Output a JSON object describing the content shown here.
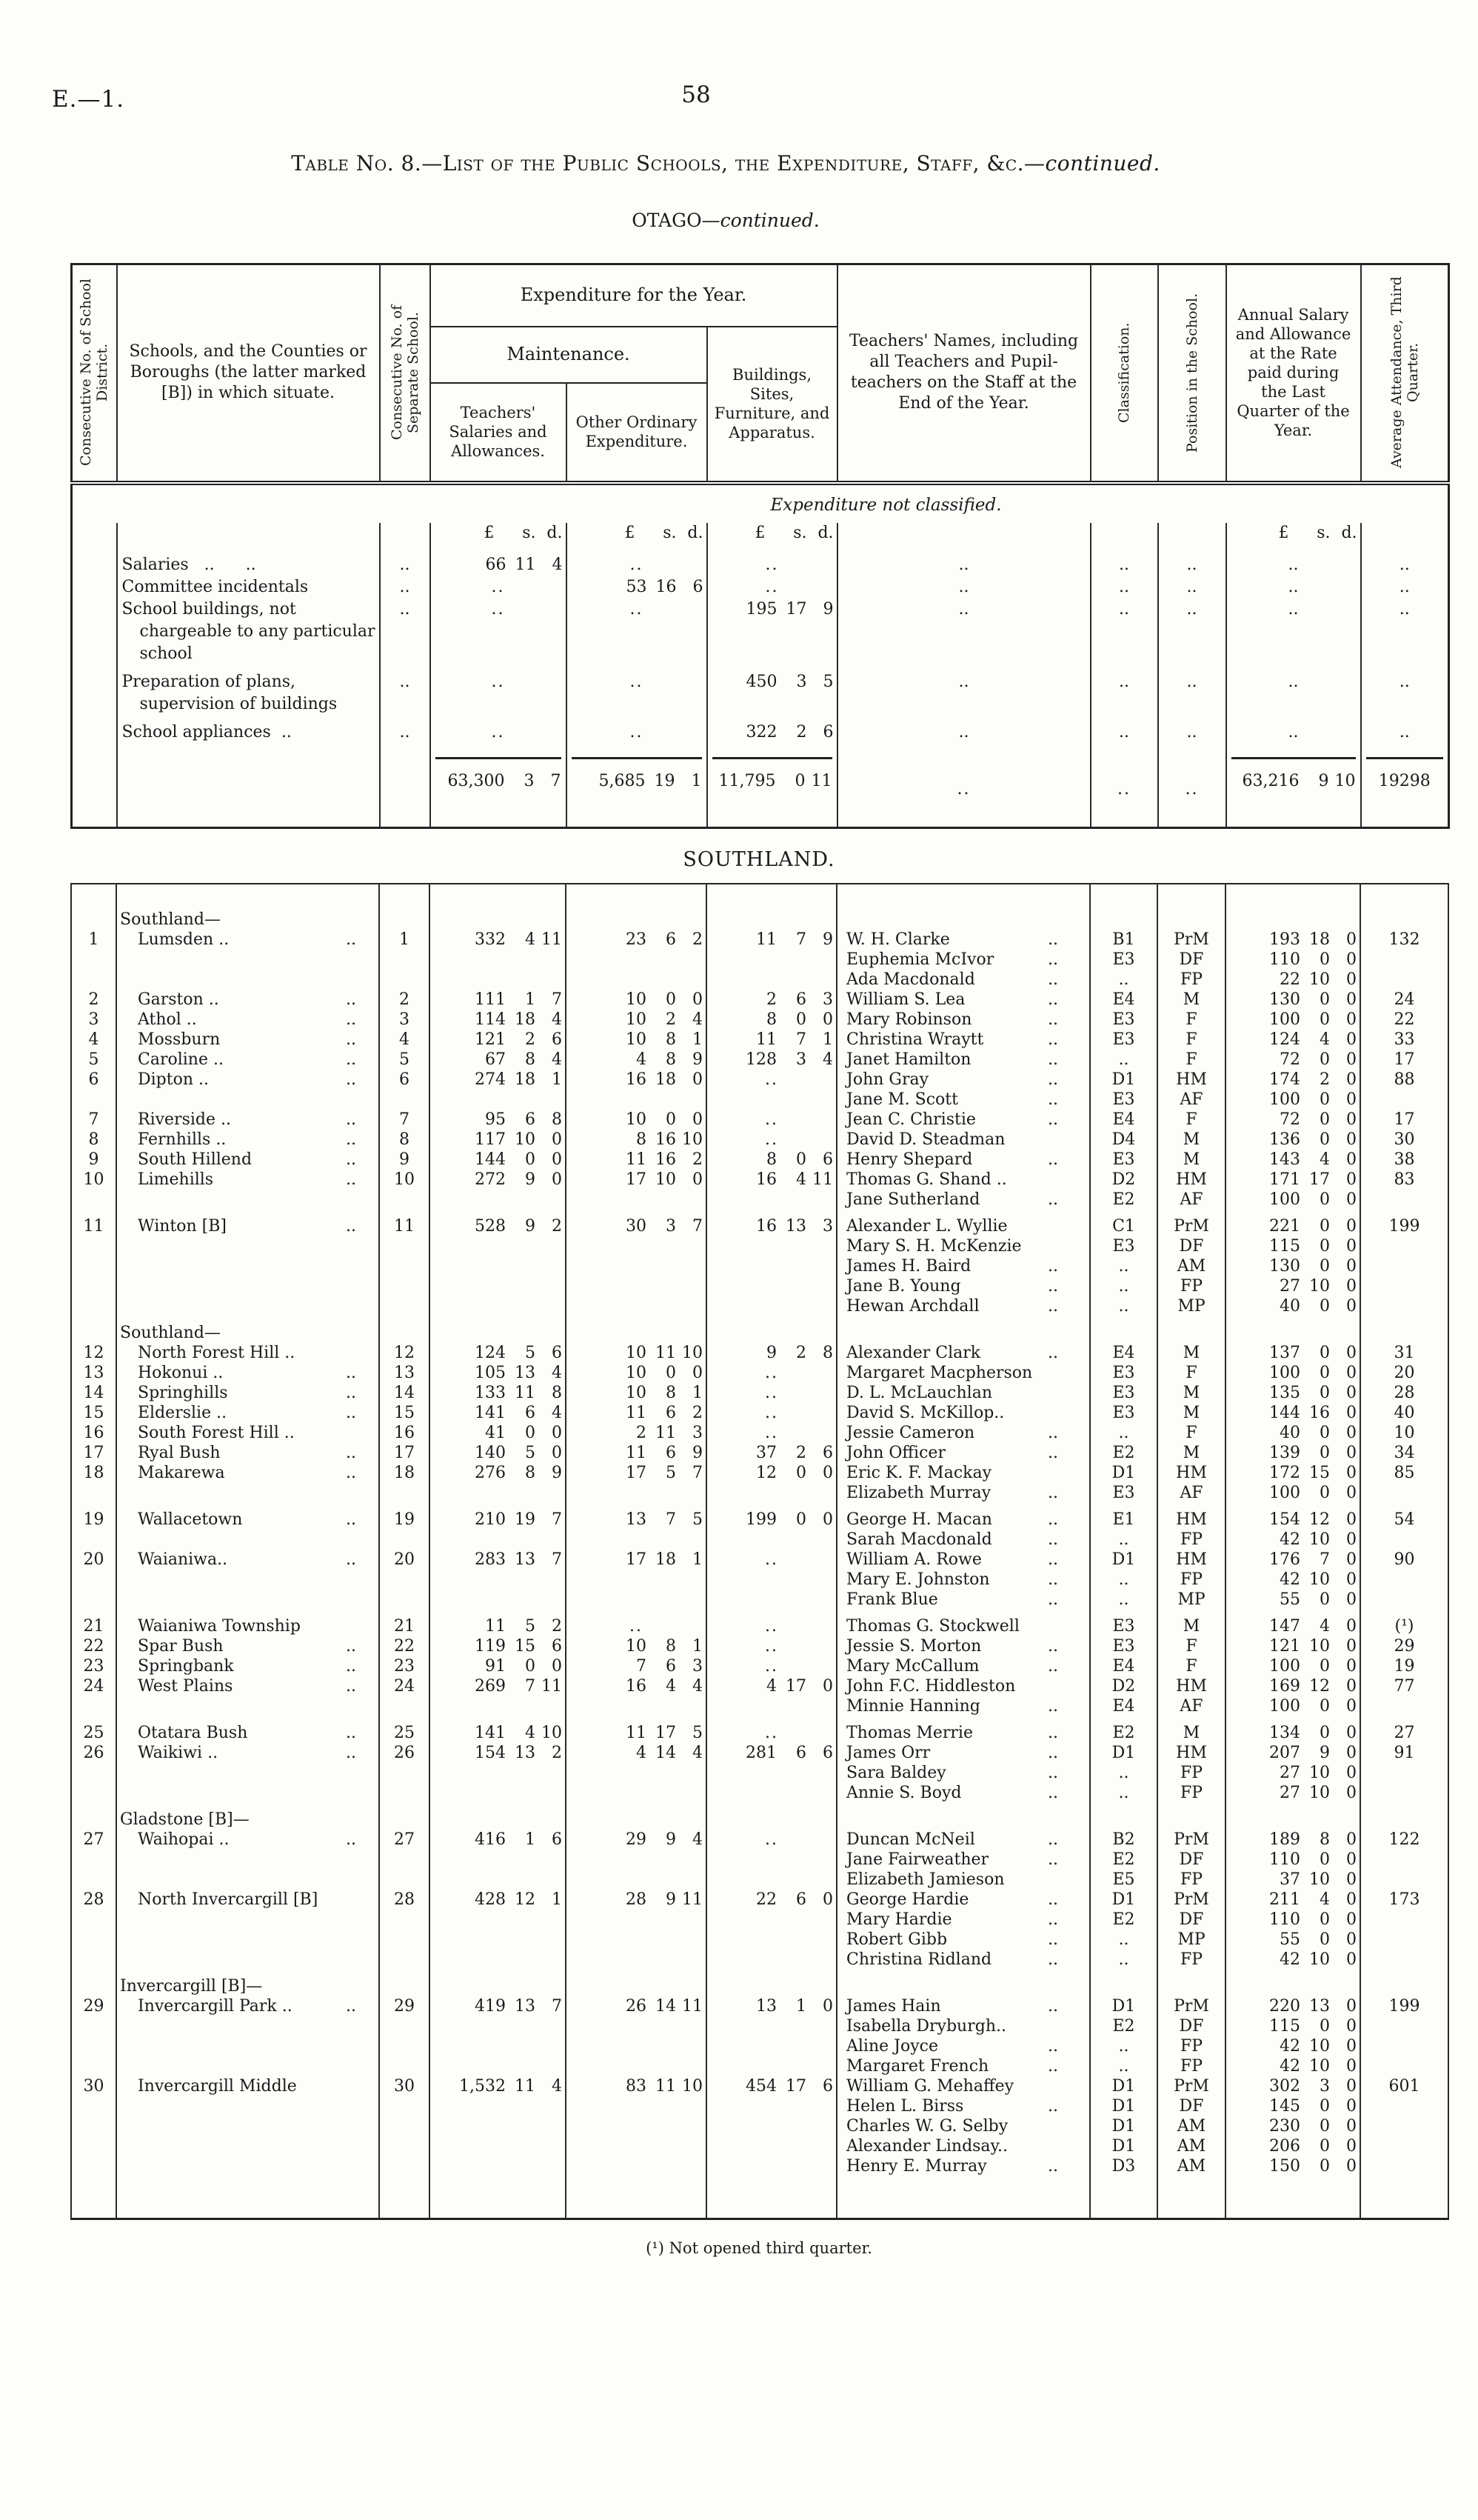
{
  "page": {
    "doc_ref": "E.—1.",
    "page_number": "58",
    "title_main": "Table No. 8.—List of the Public Schools, the Expenditure, Staff, &c.—",
    "title_suffix": "continued.",
    "region_main": "OTAGO—",
    "region_suffix": "continued.",
    "section_heading": "SOUTHLAND.",
    "footnote": "(¹) Not opened third quarter."
  },
  "headers": {
    "district_no": "Consecutive No. of School District.",
    "schools": "Schools, and the Counties or Boroughs (the latter marked [B]) in which situate.",
    "school_no": "Consecutive No. of Separate School.",
    "expenditure_group": "Expenditure for the Year.",
    "maintenance_group": "Maintenance.",
    "teachers_salaries": "Teachers' Salaries and Allowances.",
    "other_ordinary": "Other Ordinary Expenditure.",
    "buildings": "Buildings, Sites, Furniture, and Apparatus.",
    "teachers_names": "Teachers' Names, including all Teachers and Pupil-teachers on the Staff at the End of the Year.",
    "classification": "Classification.",
    "position": "Position in the School.",
    "salary": "Annual Salary and Allowance at the Rate paid during the Last Quarter of the Year.",
    "attendance": "Average Attendance, Third Quarter."
  },
  "units": "£ s. d.",
  "dots": "..",
  "unclassified": {
    "heading": "Expenditure not classified.",
    "rows": [
      {
        "label": "Salaries   ..      ..",
        "sep": "..",
        "sal": "66 11 4",
        "oth": "..",
        "bld": "..",
        "nm": "..",
        "cl": "..",
        "ps": "..",
        "sy": "..",
        "at": "..",
        "pad": false
      },
      {
        "label": "Committee incidentals",
        "sep": "..",
        "sal": "..",
        "oth": "53 16 6",
        "bld": "..",
        "nm": "..",
        "cl": "..",
        "ps": "..",
        "sy": "..",
        "at": "..",
        "pad": false
      },
      {
        "label": "School buildings, not chargeable to any particular school",
        "sep": "..",
        "sal": "..",
        "oth": "..",
        "bld": "195 17 9",
        "nm": "..",
        "cl": "..",
        "ps": "..",
        "sy": "..",
        "at": "..",
        "pad": false
      },
      {
        "label": "Preparation of plans, supervision of buildings",
        "sep": "..",
        "sal": "..",
        "oth": "..",
        "bld": "450 3 5",
        "nm": "..",
        "cl": "..",
        "ps": "..",
        "sy": "..",
        "at": "..",
        "pad": true
      },
      {
        "label": "School appliances  ..",
        "sep": "..",
        "sal": "..",
        "oth": "..",
        "bld": "322 2 6",
        "nm": "..",
        "cl": "..",
        "ps": "..",
        "sy": "..",
        "at": "..",
        "pad": true
      }
    ],
    "totals": {
      "sal": "63,300 3 7",
      "oth": "5,685 19 1",
      "bld": "11,795 0 11",
      "nm": "..",
      "cl": "..",
      "ps": "..",
      "sy": "63,216 9 10",
      "at": "19298"
    }
  },
  "southland": {
    "rows": [
      {
        "no": "1",
        "group": "Southland—",
        "school": "Lumsden ..",
        "trail": "..",
        "sal": "332 4 11",
        "oth": "23 6 2",
        "bld": "11 7 9",
        "att": "132",
        "teachers": [
          [
            "W. H. Clarke",
            "..",
            "B1",
            "PrM",
            "193 18 0"
          ],
          [
            "Euphemia McIvor",
            "..",
            "E3",
            "DF",
            "110 0 0"
          ],
          [
            "Ada Macdonald",
            "..",
            "..",
            "FP",
            "22 10 0"
          ]
        ]
      },
      {
        "no": "2",
        "school": "Garston ..",
        "trail": "..",
        "sal": "111 1 7",
        "oth": "10 0 0",
        "bld": "2 6 3",
        "att": "24",
        "teachers": [
          [
            "William S. Lea",
            "..",
            "E4",
            "M",
            "130 0 0"
          ]
        ]
      },
      {
        "no": "3",
        "school": "Athol ..",
        "trail": "..",
        "sal": "114 18 4",
        "oth": "10 2 4",
        "bld": "8 0 0",
        "att": "22",
        "teachers": [
          [
            "Mary Robinson",
            "..",
            "E3",
            "F",
            "100 0 0"
          ]
        ]
      },
      {
        "no": "4",
        "school": "Mossburn",
        "trail": "..",
        "sal": "121 2 6",
        "oth": "10 8 1",
        "bld": "11 7 1",
        "att": "33",
        "teachers": [
          [
            "Christina Wraytt",
            "..",
            "E3",
            "F",
            "124 4 0"
          ]
        ]
      },
      {
        "no": "5",
        "school": "Caroline ..",
        "trail": "..",
        "sal": "67 8 4",
        "oth": "4 8 9",
        "bld": "128 3 4",
        "att": "17",
        "teachers": [
          [
            "Janet Hamilton",
            "..",
            "..",
            "F",
            "72 0 0"
          ]
        ]
      },
      {
        "no": "6",
        "school": "Dipton ..",
        "trail": "..",
        "sal": "274 18 1",
        "oth": "16 18 0",
        "bld": "..",
        "att": "88",
        "teachers": [
          [
            "John Gray",
            "..",
            "D1",
            "HM",
            "174 2 0"
          ],
          [
            "Jane M. Scott",
            "..",
            "E3",
            "AF",
            "100 0 0"
          ]
        ]
      },
      {
        "no": "7",
        "school": "Riverside ..",
        "trail": "..",
        "sal": "95 6 8",
        "oth": "10 0 0",
        "bld": "..",
        "att": "17",
        "teachers": [
          [
            "Jean C. Christie",
            "..",
            "E4",
            "F",
            "72 0 0"
          ]
        ]
      },
      {
        "no": "8",
        "school": "Fernhills ..",
        "trail": "..",
        "sal": "117 10 0",
        "oth": "8 16 10",
        "bld": "..",
        "att": "30",
        "teachers": [
          [
            "David D. Steadman",
            "",
            "D4",
            "M",
            "136 0 0"
          ]
        ]
      },
      {
        "no": "9",
        "school": "South Hillend",
        "trail": "..",
        "sal": "144 0 0",
        "oth": "11 16 2",
        "bld": "8 0 6",
        "att": "38",
        "teachers": [
          [
            "Henry Shepard",
            "..",
            "E3",
            "M",
            "143 4 0"
          ]
        ]
      },
      {
        "no": "10",
        "school": "Limehills",
        "trail": "..",
        "sal": "272 9 0",
        "oth": "17 10 0",
        "bld": "16 4 11",
        "att": "83",
        "teachers": [
          [
            "Thomas G. Shand ..",
            "",
            "D2",
            "HM",
            "171 17 0"
          ],
          [
            "Jane Sutherland",
            "..",
            "E2",
            "AF",
            "100 0 0"
          ]
        ]
      },
      {
        "no": "11",
        "school": "Winton [B]",
        "trail": "..",
        "gap": true,
        "sal": "528 9 2",
        "oth": "30 3 7",
        "bld": "16 13 3",
        "att": "199",
        "teachers": [
          [
            "Alexander L. Wyllie",
            "",
            "C1",
            "PrM",
            "221 0 0"
          ],
          [
            "Mary S. H. McKenzie",
            "",
            "E3",
            "DF",
            "115 0 0"
          ],
          [
            "James H. Baird",
            "..",
            "..",
            "AM",
            "130 0 0"
          ],
          [
            "Jane B. Young",
            "..",
            "..",
            "FP",
            "27 10 0"
          ],
          [
            "Hewan Archdall",
            "..",
            "..",
            "MP",
            "40 0 0"
          ]
        ]
      },
      {
        "no": "12",
        "group": "Southland—",
        "gap": true,
        "school": "North Forest Hill ..",
        "trail": "",
        "sal": "124 5 6",
        "oth": "10 11 10",
        "bld": "9 2 8",
        "att": "31",
        "teachers": [
          [
            "Alexander Clark",
            "..",
            "E4",
            "M",
            "137 0 0"
          ]
        ]
      },
      {
        "no": "13",
        "school": "Hokonui ..",
        "trail": "..",
        "sal": "105 13 4",
        "oth": "10 0 0",
        "bld": "..",
        "att": "20",
        "teachers": [
          [
            "Margaret Macpherson",
            "",
            "E3",
            "F",
            "100 0 0"
          ]
        ]
      },
      {
        "no": "14",
        "school": "Springhills",
        "trail": "..",
        "sal": "133 11 8",
        "oth": "10 8 1",
        "bld": "..",
        "att": "28",
        "teachers": [
          [
            "D. L. McLauchlan",
            "",
            "E3",
            "M",
            "135 0 0"
          ]
        ]
      },
      {
        "no": "15",
        "school": "Elderslie ..",
        "trail": "..",
        "sal": "141 6 4",
        "oth": "11 6 2",
        "bld": "..",
        "att": "40",
        "teachers": [
          [
            "David S. McKillop..",
            "",
            "E3",
            "M",
            "144 16 0"
          ]
        ]
      },
      {
        "no": "16",
        "school": "South Forest Hill ..",
        "trail": "",
        "sal": "41 0 0",
        "oth": "2 11 3",
        "bld": "..",
        "att": "10",
        "teachers": [
          [
            "Jessie Cameron",
            "..",
            "..",
            "F",
            "40 0 0"
          ]
        ]
      },
      {
        "no": "17",
        "school": "Ryal Bush",
        "trail": "..",
        "sal": "140 5 0",
        "oth": "11 6 9",
        "bld": "37 2 6",
        "att": "34",
        "teachers": [
          [
            "John Officer",
            "..",
            "E2",
            "M",
            "139 0 0"
          ]
        ]
      },
      {
        "no": "18",
        "school": "Makarewa",
        "trail": "..",
        "sal": "276 8 9",
        "oth": "17 5 7",
        "bld": "12 0 0",
        "att": "85",
        "teachers": [
          [
            "Eric K. F. Mackay",
            "",
            "D1",
            "HM",
            "172 15 0"
          ],
          [
            "Elizabeth Murray",
            "..",
            "E3",
            "AF",
            "100 0 0"
          ]
        ]
      },
      {
        "no": "19",
        "school": "Wallacetown",
        "trail": "..",
        "gap": true,
        "sal": "210 19 7",
        "oth": "13 7 5",
        "bld": "199 0 0",
        "att": "54",
        "teachers": [
          [
            "George H. Macan",
            "..",
            "E1",
            "HM",
            "154 12 0"
          ],
          [
            "Sarah Macdonald",
            "..",
            "..",
            "FP",
            "42 10 0"
          ]
        ]
      },
      {
        "no": "20",
        "school": "Waianiwa..",
        "trail": "..",
        "sal": "283 13 7",
        "oth": "17 18 1",
        "bld": "..",
        "att": "90",
        "teachers": [
          [
            "William A. Rowe",
            "..",
            "D1",
            "HM",
            "176 7 0"
          ],
          [
            "Mary E. Johnston",
            "..",
            "..",
            "FP",
            "42 10 0"
          ],
          [
            "Frank Blue",
            "..",
            "..",
            "MP",
            "55 0 0"
          ]
        ]
      },
      {
        "no": "21",
        "school": "Waianiwa Township",
        "trail": "",
        "gap": true,
        "sal": "11 5 2",
        "oth": "..",
        "bld": "..",
        "att": "(¹)",
        "teachers": [
          [
            "Thomas G. Stockwell",
            "",
            "E3",
            "M",
            "147 4 0"
          ]
        ]
      },
      {
        "no": "22",
        "school": "Spar Bush",
        "trail": "..",
        "sal": "119 15 6",
        "oth": "10 8 1",
        "bld": "..",
        "att": "29",
        "teachers": [
          [
            "Jessie S. Morton",
            "..",
            "E3",
            "F",
            "121 10 0"
          ]
        ]
      },
      {
        "no": "23",
        "school": "Springbank",
        "trail": "..",
        "sal": "91 0 0",
        "oth": "7 6 3",
        "bld": "..",
        "att": "19",
        "teachers": [
          [
            "Mary McCallum",
            "..",
            "E4",
            "F",
            "100 0 0"
          ]
        ]
      },
      {
        "no": "24",
        "school": "West Plains",
        "trail": "..",
        "sal": "269 7 11",
        "oth": "16 4 4",
        "bld": "4 17 0",
        "att": "77",
        "teachers": [
          [
            "John F.C. Hiddleston",
            "",
            "D2",
            "HM",
            "169 12 0"
          ],
          [
            "Minnie Hanning",
            "..",
            "E4",
            "AF",
            "100 0 0"
          ]
        ]
      },
      {
        "no": "25",
        "school": "Otatara Bush",
        "trail": "..",
        "gap": true,
        "sal": "141 4 10",
        "oth": "11 17 5",
        "bld": "..",
        "att": "27",
        "teachers": [
          [
            "Thomas Merrie",
            "..",
            "E2",
            "M",
            "134 0 0"
          ]
        ]
      },
      {
        "no": "26",
        "school": "Waikiwi ..",
        "trail": "..",
        "sal": "154 13 2",
        "oth": "4 14 4",
        "bld": "281 6 6",
        "att": "91",
        "teachers": [
          [
            "James Orr",
            "..",
            "D1",
            "HM",
            "207 9 0"
          ],
          [
            "Sara Baldey",
            "..",
            "..",
            "FP",
            "27 10 0"
          ],
          [
            "Annie S. Boyd",
            "..",
            "..",
            "FP",
            "27 10 0"
          ]
        ]
      },
      {
        "no": "27",
        "group": "Gladstone [B]—",
        "gap": true,
        "school": "Waihopai ..",
        "trail": "..",
        "sal": "416 1 6",
        "oth": "29 9 4",
        "bld": "..",
        "att": "122",
        "teachers": [
          [
            "Duncan McNeil",
            "..",
            "B2",
            "PrM",
            "189 8 0"
          ],
          [
            "Jane Fairweather",
            "..",
            "E2",
            "DF",
            "110 0 0"
          ],
          [
            "Elizabeth Jamieson",
            "",
            "E5",
            "FP",
            "37 10 0"
          ]
        ]
      },
      {
        "no": "28",
        "school": "North Invercargill [B]",
        "trail": "",
        "sal": "428 12 1",
        "oth": "28 9 11",
        "bld": "22 6 0",
        "att": "173",
        "teachers": [
          [
            "George Hardie",
            "..",
            "D1",
            "PrM",
            "211 4 0"
          ],
          [
            "Mary Hardie",
            "..",
            "E2",
            "DF",
            "110 0 0"
          ],
          [
            "Robert Gibb",
            "..",
            "..",
            "MP",
            "55 0 0"
          ],
          [
            "Christina Ridland",
            "..",
            "..",
            "FP",
            "42 10 0"
          ]
        ]
      },
      {
        "no": "29",
        "group": "Invercargill [B]—",
        "gap": true,
        "school": "Invercargill Park ..",
        "trail": "..",
        "sal": "419 13 7",
        "oth": "26 14 11",
        "bld": "13 1 0",
        "att": "199",
        "teachers": [
          [
            "James Hain",
            "..",
            "D1",
            "PrM",
            "220 13 0"
          ],
          [
            "Isabella Dryburgh..",
            "",
            "E2",
            "DF",
            "115 0 0"
          ],
          [
            "Aline Joyce",
            "..",
            "..",
            "FP",
            "42 10 0"
          ],
          [
            "Margaret French",
            "..",
            "..",
            "FP",
            "42 10 0"
          ]
        ]
      },
      {
        "no": "30",
        "school": "Invercargill Middle",
        "trail": "",
        "sal": "1,532 11 4",
        "oth": "83 11 10",
        "bld": "454 17 6",
        "att": "601",
        "teachers": [
          [
            "William G. Mehaffey",
            "",
            "D1",
            "PrM",
            "302 3 0"
          ],
          [
            "Helen L. Birss",
            "..",
            "D1",
            "DF",
            "145 0 0"
          ],
          [
            "Charles W. G. Selby",
            "",
            "D1",
            "AM",
            "230 0 0"
          ],
          [
            "Alexander Lindsay..",
            "",
            "D1",
            "AM",
            "206 0 0"
          ],
          [
            "Henry E. Murray",
            "..",
            "D3",
            "AM",
            "150 0 0"
          ]
        ]
      }
    ]
  }
}
